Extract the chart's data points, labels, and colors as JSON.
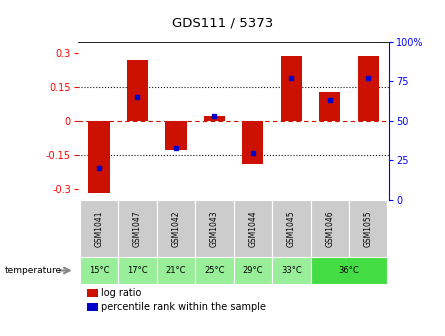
{
  "title": "GDS111 / 5373",
  "samples": [
    "GSM1041",
    "GSM1047",
    "GSM1042",
    "GSM1043",
    "GSM1044",
    "GSM1045",
    "GSM1046",
    "GSM1055"
  ],
  "temp_labels": [
    "15°C",
    "17°C",
    "21°C",
    "25°C",
    "29°C",
    "33°C",
    "36°C"
  ],
  "temp_col_indices": [
    0,
    1,
    2,
    3,
    4,
    5,
    6
  ],
  "temp_merge_cols": [
    6,
    7
  ],
  "log_ratio": [
    -0.32,
    0.27,
    -0.13,
    0.02,
    -0.19,
    0.29,
    0.13,
    0.29
  ],
  "percentile": [
    20,
    65,
    33,
    53,
    30,
    77,
    63,
    77
  ],
  "ylim_left": [
    -0.35,
    0.35
  ],
  "ylim_right": [
    0,
    100
  ],
  "yticks_left": [
    -0.3,
    -0.15,
    0,
    0.15,
    0.3
  ],
  "yticks_right": [
    0,
    25,
    50,
    75,
    100
  ],
  "bar_color": "#cc1100",
  "pct_color": "#0000cc",
  "bg_color": "#ffffff",
  "plot_bg": "#ffffff",
  "zero_line_color": "#cc1100",
  "dotted_color": "#111111",
  "sample_bg": "#cccccc",
  "temp_bg_light": "#99ee99",
  "temp_bg_dark": "#44dd44",
  "legend_label_ratio": "log ratio",
  "legend_label_pct": "percentile rank within the sample",
  "temp_label": "temperature"
}
